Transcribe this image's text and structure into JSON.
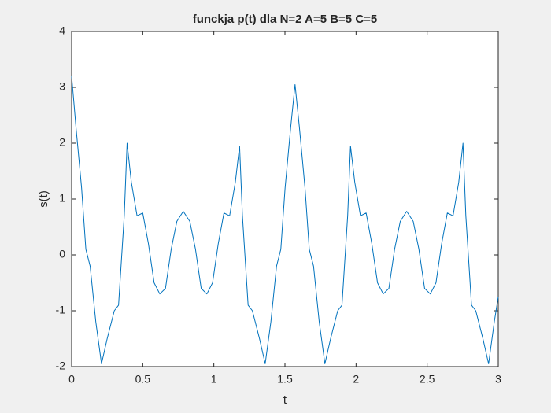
{
  "chart_data": {
    "type": "line",
    "title": "funckja p(t) dla N=2 A=5 B=5 C=5",
    "xlabel": "t",
    "ylabel": "s(t)",
    "color": "#0072bd",
    "x": [
      0,
      0.03,
      0.07,
      0.1,
      0.13,
      0.17,
      0.21,
      0.25,
      0.3,
      0.33,
      0.37,
      0.39,
      0.42,
      0.46,
      0.5,
      0.54,
      0.58,
      0.62,
      0.66,
      0.7,
      0.74,
      0.785,
      0.831,
      0.871,
      0.911,
      0.951,
      0.991,
      1.031,
      1.071,
      1.111,
      1.151,
      1.181,
      1.201,
      1.241,
      1.271,
      1.321,
      1.361,
      1.401,
      1.441,
      1.471,
      1.501,
      1.541,
      1.571,
      1.601,
      1.641,
      1.671,
      1.701,
      1.741,
      1.781,
      1.821,
      1.871,
      1.901,
      1.941,
      1.961,
      1.991,
      2.031,
      2.071,
      2.111,
      2.151,
      2.191,
      2.231,
      2.271,
      2.311,
      2.356,
      2.402,
      2.442,
      2.482,
      2.522,
      2.562,
      2.602,
      2.642,
      2.682,
      2.722,
      2.752,
      2.772,
      2.812,
      2.842,
      2.892,
      2.932,
      2.972,
      3
    ],
    "values": [
      3.2,
      2.3,
      1.2,
      0.1,
      -0.2,
      -1.2,
      -1.95,
      -1.5,
      -1.0,
      -0.9,
      0.7,
      2.0,
      1.3,
      0.7,
      0.75,
      0.2,
      -0.5,
      -0.7,
      -0.6,
      0.1,
      0.6,
      0.78,
      0.6,
      0.1,
      -0.6,
      -0.7,
      -0.5,
      0.2,
      0.75,
      0.7,
      1.3,
      1.95,
      0.7,
      -0.9,
      -1.0,
      -1.5,
      -1.95,
      -1.2,
      -0.2,
      0.1,
      1.2,
      2.3,
      3.05,
      2.3,
      1.2,
      0.1,
      -0.2,
      -1.2,
      -1.95,
      -1.5,
      -1.0,
      -0.9,
      0.7,
      1.95,
      1.3,
      0.7,
      0.75,
      0.2,
      -0.5,
      -0.7,
      -0.6,
      0.1,
      0.6,
      0.78,
      0.6,
      0.1,
      -0.6,
      -0.7,
      -0.5,
      0.2,
      0.75,
      0.7,
      1.3,
      2.0,
      0.7,
      -0.9,
      -1.0,
      -1.5,
      -1.95,
      -1.2,
      -0.75
    ],
    "xlim": [
      0,
      3
    ],
    "xticks": [
      0,
      0.5,
      1,
      1.5,
      2,
      2.5,
      3
    ],
    "ylim": [
      -2,
      4
    ],
    "yticks": [
      -2,
      -1,
      0,
      1,
      2,
      3,
      4
    ]
  }
}
